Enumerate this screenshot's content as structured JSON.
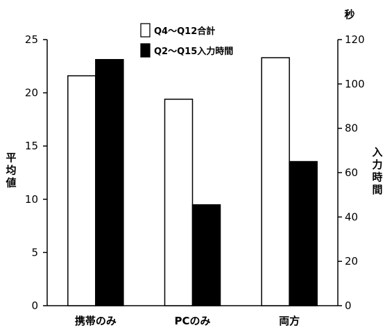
{
  "chart_data": {
    "type": "bar",
    "categories": [
      "携帯のみ",
      "PCのみ",
      "両方"
    ],
    "series": [
      {
        "name": "Q4～Q12合計",
        "axis": "left",
        "color": "#ffffff",
        "values": [
          21.6,
          19.4,
          23.3
        ]
      },
      {
        "name": "Q2～Q15入力時間",
        "axis": "right",
        "color": "#000000",
        "values": [
          111,
          45.5,
          65
        ]
      }
    ],
    "left_axis": {
      "label_chars": [
        "平",
        "均",
        "値"
      ],
      "ylim": [
        0,
        25
      ],
      "ticks": [
        0,
        5,
        10,
        15,
        20,
        25
      ]
    },
    "right_axis": {
      "unit": "秒",
      "label_chars": [
        "入",
        "力",
        "時",
        "間"
      ],
      "ylim": [
        0,
        120
      ],
      "ticks": [
        0,
        20,
        40,
        60,
        80,
        100,
        120
      ]
    },
    "legend_position": "top-center",
    "grid": false
  }
}
